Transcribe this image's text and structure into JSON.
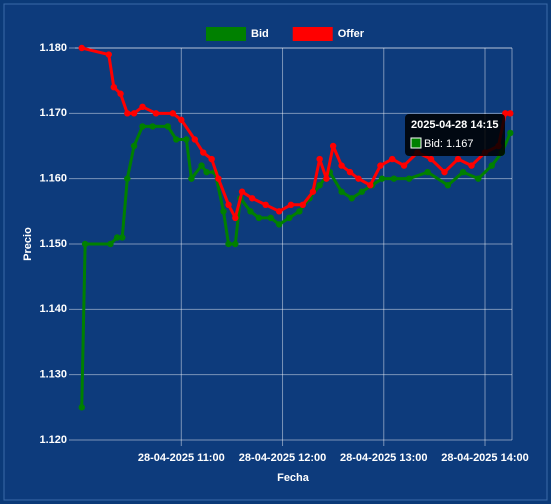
{
  "chart_data": {
    "type": "line",
    "x_label": "Fecha",
    "y_label": "Precio",
    "grid": true,
    "legend": "top",
    "xlim": [
      "28-04-2025 09:57",
      "28-04-2025 14:16"
    ],
    "xticks": [
      "28-04-2025 11:00",
      "28-04-2025 12:00",
      "28-04-2025 13:00",
      "28-04-2025 14:00"
    ],
    "ylim": [
      1.12,
      1.18
    ],
    "yticks": [
      {
        "value": 1.12,
        "label": "1.120"
      },
      {
        "value": 1.13,
        "label": "1.130"
      },
      {
        "value": 1.14,
        "label": "1.140"
      },
      {
        "value": 1.15,
        "label": "1.150"
      },
      {
        "value": 1.16,
        "label": "1.160"
      },
      {
        "value": 1.17,
        "label": "1.170"
      },
      {
        "value": 1.18,
        "label": "1.180"
      }
    ],
    "tooltip": {
      "title": "2025-04-28 14:15",
      "label": "Bid: 1.167"
    },
    "series": [
      {
        "name": "Bid",
        "color": "#008000",
        "x": [
          "28-04-2025 10:01",
          "28-04-2025 10:03",
          "28-04-2025 10:18",
          "28-04-2025 10:22",
          "28-04-2025 10:25",
          "28-04-2025 10:28",
          "28-04-2025 10:32",
          "28-04-2025 10:37",
          "28-04-2025 10:43",
          "28-04-2025 10:52",
          "28-04-2025 10:57",
          "28-04-2025 11:03",
          "28-04-2025 11:06",
          "28-04-2025 11:12",
          "28-04-2025 11:15",
          "28-04-2025 11:20",
          "28-04-2025 11:25",
          "28-04-2025 11:28",
          "28-04-2025 11:32",
          "28-04-2025 11:35",
          "28-04-2025 11:41",
          "28-04-2025 11:46",
          "28-04-2025 11:53",
          "28-04-2025 11:58",
          "28-04-2025 12:04",
          "28-04-2025 12:10",
          "28-04-2025 12:16",
          "28-04-2025 12:22",
          "28-04-2025 12:28",
          "28-04-2025 12:35",
          "28-04-2025 12:41",
          "28-04-2025 12:47",
          "28-04-2025 12:53",
          "28-04-2025 12:59",
          "28-04-2025 13:06",
          "28-04-2025 13:15",
          "28-04-2025 13:26",
          "28-04-2025 13:38",
          "28-04-2025 13:47",
          "28-04-2025 13:56",
          "28-04-2025 14:04",
          "28-04-2025 14:10",
          "28-04-2025 14:15"
        ],
        "values": [
          1.125,
          1.15,
          1.15,
          1.151,
          1.151,
          1.16,
          1.165,
          1.168,
          1.168,
          1.168,
          1.166,
          1.166,
          1.16,
          1.162,
          1.161,
          1.161,
          1.155,
          1.15,
          1.15,
          1.157,
          1.155,
          1.154,
          1.154,
          1.153,
          1.154,
          1.155,
          1.157,
          1.159,
          1.161,
          1.158,
          1.157,
          1.158,
          1.159,
          1.16,
          1.16,
          1.16,
          1.161,
          1.159,
          1.161,
          1.16,
          1.162,
          1.164,
          1.167
        ]
      },
      {
        "name": "Offer",
        "color": "#ff0000",
        "x": [
          "28-04-2025 10:01",
          "28-04-2025 10:17",
          "28-04-2025 10:20",
          "28-04-2025 10:24",
          "28-04-2025 10:28",
          "28-04-2025 10:32",
          "28-04-2025 10:37",
          "28-04-2025 10:45",
          "28-04-2025 10:55",
          "28-04-2025 11:00",
          "28-04-2025 11:08",
          "28-04-2025 11:13",
          "28-04-2025 11:18",
          "28-04-2025 11:22",
          "28-04-2025 11:28",
          "28-04-2025 11:32",
          "28-04-2025 11:36",
          "28-04-2025 11:42",
          "28-04-2025 11:50",
          "28-04-2025 11:58",
          "28-04-2025 12:05",
          "28-04-2025 12:12",
          "28-04-2025 12:18",
          "28-04-2025 12:22",
          "28-04-2025 12:26",
          "28-04-2025 12:30",
          "28-04-2025 12:35",
          "28-04-2025 12:40",
          "28-04-2025 12:45",
          "28-04-2025 12:52",
          "28-04-2025 12:58",
          "28-04-2025 13:05",
          "28-04-2025 13:12",
          "28-04-2025 13:20",
          "28-04-2025 13:28",
          "28-04-2025 13:36",
          "28-04-2025 13:44",
          "28-04-2025 13:52",
          "28-04-2025 14:00",
          "28-04-2025 14:08",
          "28-04-2025 14:12",
          "28-04-2025 14:15"
        ],
        "values": [
          1.18,
          1.179,
          1.174,
          1.173,
          1.17,
          1.17,
          1.171,
          1.17,
          1.17,
          1.169,
          1.166,
          1.164,
          1.163,
          1.16,
          1.156,
          1.154,
          1.158,
          1.157,
          1.156,
          1.155,
          1.156,
          1.156,
          1.158,
          1.163,
          1.16,
          1.165,
          1.162,
          1.161,
          1.16,
          1.159,
          1.162,
          1.163,
          1.162,
          1.164,
          1.163,
          1.161,
          1.163,
          1.162,
          1.164,
          1.165,
          1.17,
          1.17
        ]
      }
    ]
  }
}
